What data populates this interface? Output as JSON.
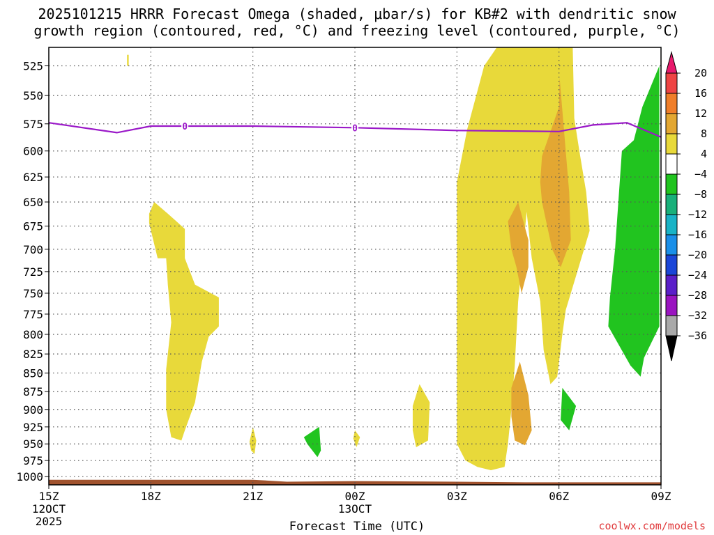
{
  "chart_data": {
    "type": "heatmap",
    "title": "2025101215 HRRR Forecast Omega (shaded, μbar/s) for KB#2 with dendritic snow",
    "subtitle": "growth region (contoured, red, °C) and freezing level (contoured, purple, °C)",
    "xlabel": "Forecast Time (UTC)",
    "x_ticks": [
      {
        "label": "15Z",
        "sub": [
          "12OCT",
          "2025"
        ],
        "hour": 0
      },
      {
        "label": "18Z",
        "sub": [],
        "hour": 3
      },
      {
        "label": "21Z",
        "sub": [],
        "hour": 6
      },
      {
        "label": "00Z",
        "sub": [
          "13OCT"
        ],
        "hour": 9
      },
      {
        "label": "03Z",
        "sub": [],
        "hour": 12
      },
      {
        "label": "06Z",
        "sub": [],
        "hour": 15
      },
      {
        "label": "09Z",
        "sub": [],
        "hour": 18
      }
    ],
    "xlim_hours": [
      0,
      18
    ],
    "ylabel": "",
    "y_ticks": [
      "525",
      "550",
      "575",
      "600",
      "625",
      "650",
      "675",
      "700",
      "725",
      "750",
      "775",
      "800",
      "825",
      "850",
      "875",
      "900",
      "925",
      "950",
      "975",
      "1000"
    ],
    "ylim_hPa": [
      510,
      1013
    ],
    "y_scale": "log",
    "grid": true,
    "colorbar": {
      "labels": [
        "20",
        "16",
        "12",
        "8",
        "4",
        "−4",
        "−8",
        "−12",
        "−16",
        "−20",
        "−24",
        "−28",
        "−32",
        "−36"
      ],
      "segments": [
        {
          "lo": 20,
          "hi": null,
          "color": "#e8196c"
        },
        {
          "lo": 16,
          "hi": 20,
          "color": "#ef4444"
        },
        {
          "lo": 12,
          "hi": 16,
          "color": "#f07e2a"
        },
        {
          "lo": 8,
          "hi": 12,
          "color": "#e3a732"
        },
        {
          "lo": 4,
          "hi": 8,
          "color": "#e8d93a"
        },
        {
          "lo": -4,
          "hi": 4,
          "color": "#ffffff"
        },
        {
          "lo": -8,
          "hi": -4,
          "color": "#21c41f"
        },
        {
          "lo": -12,
          "hi": -8,
          "color": "#19b07a"
        },
        {
          "lo": -16,
          "hi": -12,
          "color": "#19b3c6"
        },
        {
          "lo": -20,
          "hi": -16,
          "color": "#1a8fe8"
        },
        {
          "lo": -24,
          "hi": -20,
          "color": "#1b46d8"
        },
        {
          "lo": -28,
          "hi": -24,
          "color": "#5b1fc9"
        },
        {
          "lo": -32,
          "hi": -28,
          "color": "#9a14c0"
        },
        {
          "lo": -36,
          "hi": -32,
          "color": "#a9a9a9"
        },
        {
          "lo": null,
          "hi": -36,
          "color": "#000000"
        }
      ]
    },
    "freezing_level": {
      "label": "0",
      "color": "#9a18c8",
      "points": [
        [
          0,
          574
        ],
        [
          2,
          583
        ],
        [
          3,
          577
        ],
        [
          6,
          577
        ],
        [
          9,
          578.5
        ],
        [
          12,
          581
        ],
        [
          15,
          582
        ],
        [
          16,
          576
        ],
        [
          17,
          574
        ],
        [
          18,
          587
        ]
      ],
      "label_hours": [
        4,
        9
      ]
    },
    "terrain": {
      "color": "#a0522d",
      "points": [
        [
          0,
          1005
        ],
        [
          6,
          1005
        ],
        [
          7,
          1008
        ],
        [
          9,
          1007
        ],
        [
          12,
          1008
        ],
        [
          14,
          1009
        ],
        [
          18,
          1009
        ]
      ]
    },
    "shaded_regions": [
      {
        "band": "4 to 8",
        "color": "#e8d93a",
        "points": [
          [
            2.3,
            525
          ],
          [
            2.3,
            516
          ],
          [
            2.35,
            516
          ],
          [
            2.35,
            525
          ]
        ]
      },
      {
        "band": "4 to 8",
        "color": "#e8d93a",
        "points": [
          [
            2.95,
            662
          ],
          [
            3.1,
            650
          ],
          [
            3.5,
            662
          ],
          [
            4.0,
            678
          ],
          [
            4.0,
            710
          ],
          [
            4.3,
            740
          ],
          [
            5.0,
            755
          ],
          [
            5.0,
            790
          ],
          [
            4.7,
            803
          ],
          [
            4.5,
            835
          ],
          [
            4.3,
            890
          ],
          [
            4.0,
            930
          ],
          [
            3.9,
            945
          ],
          [
            3.6,
            940
          ],
          [
            3.45,
            900
          ],
          [
            3.45,
            845
          ],
          [
            3.6,
            785
          ],
          [
            3.5,
            740
          ],
          [
            3.45,
            710
          ],
          [
            3.2,
            710
          ],
          [
            2.95,
            672
          ]
        ]
      },
      {
        "band": "4 to 8",
        "color": "#e8d93a",
        "points": [
          [
            5.9,
            947
          ],
          [
            6.0,
            925
          ],
          [
            6.1,
            945
          ],
          [
            6.05,
            965
          ],
          [
            5.95,
            960
          ]
        ]
      },
      {
        "band": "4 to 8",
        "color": "#e8d93a",
        "points": [
          [
            8.95,
            942
          ],
          [
            9.0,
            930
          ],
          [
            9.15,
            940
          ],
          [
            9.05,
            955
          ]
        ]
      },
      {
        "band": "4 to 8",
        "color": "#e8d93a",
        "points": [
          [
            10.7,
            895
          ],
          [
            10.9,
            865
          ],
          [
            11.2,
            890
          ],
          [
            11.15,
            945
          ],
          [
            10.8,
            955
          ],
          [
            10.7,
            930
          ]
        ]
      },
      {
        "band": "4 to 8",
        "color": "#e8d93a",
        "points": [
          [
            12.0,
            630
          ],
          [
            12.3,
            580
          ],
          [
            12.8,
            525
          ],
          [
            13.3,
            505
          ],
          [
            15.4,
            505
          ],
          [
            15.45,
            570
          ],
          [
            15.6,
            600
          ],
          [
            15.8,
            640
          ],
          [
            15.9,
            680
          ],
          [
            15.5,
            730
          ],
          [
            15.2,
            770
          ],
          [
            15.1,
            800
          ],
          [
            14.95,
            855
          ],
          [
            14.75,
            865
          ],
          [
            14.55,
            820
          ],
          [
            14.45,
            760
          ],
          [
            14.2,
            710
          ],
          [
            14.05,
            660
          ],
          [
            13.95,
            700
          ],
          [
            13.8,
            760
          ],
          [
            13.7,
            840
          ],
          [
            13.6,
            900
          ],
          [
            13.5,
            950
          ],
          [
            13.4,
            985
          ],
          [
            13.0,
            990
          ],
          [
            12.6,
            985
          ],
          [
            12.25,
            975
          ],
          [
            12.0,
            950
          ]
        ]
      },
      {
        "band": "8 to 12",
        "color": "#e3a732",
        "points": [
          [
            13.5,
            670
          ],
          [
            13.8,
            650
          ],
          [
            14.1,
            690
          ],
          [
            14.1,
            720
          ],
          [
            13.9,
            750
          ],
          [
            13.75,
            720
          ],
          [
            13.6,
            700
          ]
        ]
      },
      {
        "band": "8 to 12",
        "color": "#e3a732",
        "points": [
          [
            13.6,
            870
          ],
          [
            13.85,
            835
          ],
          [
            14.1,
            880
          ],
          [
            14.2,
            930
          ],
          [
            14.0,
            952
          ],
          [
            13.7,
            945
          ],
          [
            13.6,
            910
          ]
        ]
      },
      {
        "band": "8 to 12",
        "color": "#e3a732",
        "points": [
          [
            14.5,
            605
          ],
          [
            15.0,
            560
          ],
          [
            15.02,
            535
          ],
          [
            15.3,
            640
          ],
          [
            15.35,
            690
          ],
          [
            15.05,
            720
          ],
          [
            14.8,
            700
          ],
          [
            14.5,
            650
          ],
          [
            14.45,
            630
          ]
        ]
      },
      {
        "band": "-8 to -4",
        "color": "#21c41f",
        "points": [
          [
            16.45,
            790
          ],
          [
            16.5,
            755
          ],
          [
            16.65,
            700
          ],
          [
            16.85,
            600
          ],
          [
            17.2,
            590
          ],
          [
            17.45,
            560
          ],
          [
            17.95,
            525
          ],
          [
            17.95,
            790
          ],
          [
            17.5,
            830
          ],
          [
            17.4,
            855
          ],
          [
            17.1,
            840
          ]
        ]
      },
      {
        "band": "-8 to -4",
        "color": "#21c41f",
        "points": [
          [
            15.1,
            870
          ],
          [
            15.5,
            895
          ],
          [
            15.3,
            930
          ],
          [
            15.05,
            915
          ]
        ]
      },
      {
        "band": "-8 to -4",
        "color": "#21c41f",
        "points": [
          [
            7.5,
            940
          ],
          [
            7.95,
            925
          ],
          [
            8.0,
            960
          ],
          [
            7.9,
            970
          ],
          [
            7.6,
            950
          ]
        ]
      }
    ]
  },
  "credit": "coolwx.com/models"
}
